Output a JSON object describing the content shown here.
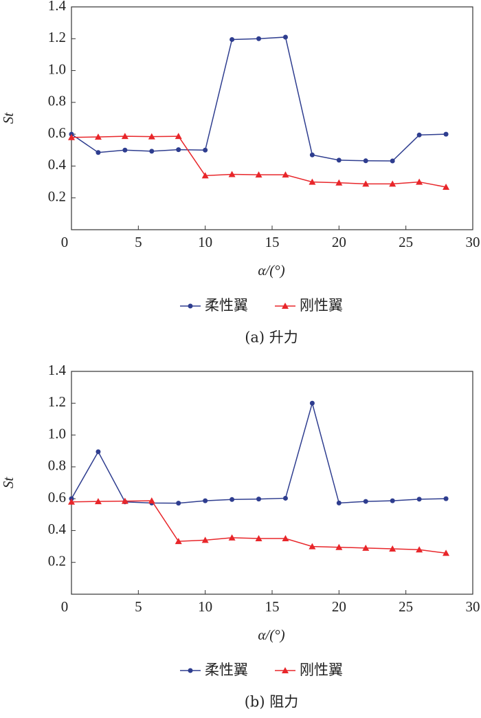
{
  "chart_data": [
    {
      "type": "line",
      "title": "(a) 升力",
      "ylabel": "St",
      "xlabel": "α/(°)",
      "x": [
        0,
        2,
        4,
        6,
        8,
        10,
        12,
        14,
        16,
        18,
        20,
        22,
        24,
        26,
        28
      ],
      "series": [
        {
          "name": "柔性翼",
          "color": "#2e3d8f",
          "marker": "circle",
          "values": [
            0.6,
            0.485,
            0.5,
            0.493,
            0.503,
            0.5,
            1.195,
            1.2,
            1.21,
            0.47,
            0.437,
            0.433,
            0.432,
            0.595,
            0.6
          ]
        },
        {
          "name": "刚性翼",
          "color": "#e8262a",
          "marker": "triangle",
          "values": [
            0.58,
            0.583,
            0.587,
            0.585,
            0.587,
            0.34,
            0.348,
            0.345,
            0.345,
            0.3,
            0.295,
            0.288,
            0.288,
            0.3,
            0.268
          ]
        }
      ],
      "xlim": [
        0,
        30
      ],
      "xticks": [
        0,
        5,
        10,
        15,
        20,
        25,
        30
      ],
      "ylim": [
        0,
        1.4
      ],
      "yticks": [
        0.2,
        0.4,
        0.6,
        0.8,
        {
          "value": 1,
          "label": "1.0"
        },
        1.2,
        1.4
      ],
      "legend": "bottom"
    },
    {
      "type": "line",
      "title": "(b) 阻力",
      "ylabel": "St",
      "xlabel": "α/(°)",
      "x": [
        0,
        2,
        4,
        6,
        8,
        10,
        12,
        14,
        16,
        18,
        20,
        22,
        24,
        26,
        28
      ],
      "series": [
        {
          "name": "柔性翼",
          "color": "#2e3d8f",
          "marker": "circle",
          "values": [
            0.6,
            0.895,
            0.58,
            0.573,
            0.572,
            0.587,
            0.595,
            0.598,
            0.603,
            1.2,
            0.573,
            0.583,
            0.587,
            0.597,
            0.6
          ]
        },
        {
          "name": "刚性翼",
          "color": "#e8262a",
          "marker": "triangle",
          "values": [
            0.58,
            0.583,
            0.585,
            0.587,
            0.332,
            0.34,
            0.355,
            0.35,
            0.35,
            0.3,
            0.295,
            0.29,
            0.285,
            0.28,
            0.258
          ]
        }
      ],
      "xlim": [
        0,
        30
      ],
      "xticks": [
        0,
        5,
        10,
        15,
        20,
        25,
        30
      ],
      "ylim": [
        0,
        1.4
      ],
      "yticks": [
        0.2,
        0.4,
        0.6,
        0.8,
        {
          "value": 1,
          "label": "1.0"
        },
        1.2,
        1.4
      ],
      "legend": "bottom"
    }
  ]
}
